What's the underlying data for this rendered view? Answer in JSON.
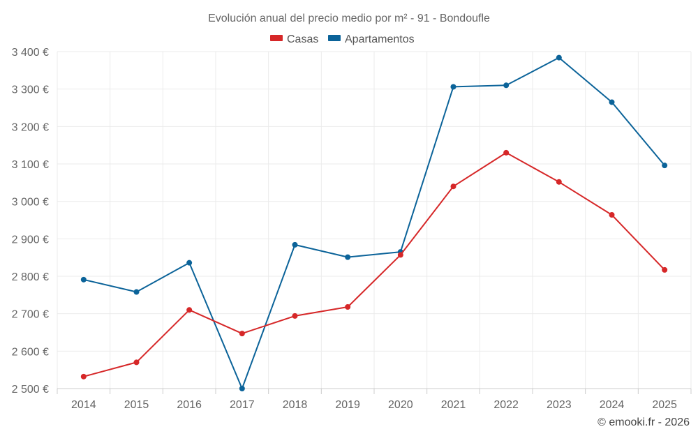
{
  "chart_data": {
    "type": "line",
    "title": "Evolución anual del precio medio por m² - 91 - Bondoufle",
    "categories": [
      "2014",
      "2015",
      "2016",
      "2017",
      "2018",
      "2019",
      "2020",
      "2021",
      "2022",
      "2023",
      "2024",
      "2025"
    ],
    "series": [
      {
        "name": "Casas",
        "color": "#d62728",
        "values": [
          2532,
          2570,
          2710,
          2647,
          2694,
          2718,
          2857,
          3040,
          3130,
          3052,
          2964,
          2817
        ]
      },
      {
        "name": "Apartamentos",
        "color": "#0b6399",
        "values": [
          2791,
          2758,
          2836,
          2500,
          2884,
          2851,
          2865,
          3306,
          3310,
          3384,
          3265,
          3096
        ]
      }
    ],
    "ylim": [
      2500,
      3400
    ],
    "yticks": [
      2500,
      2600,
      2700,
      2800,
      2900,
      3000,
      3100,
      3200,
      3300,
      3400
    ],
    "ytick_labels": [
      "2 500 €",
      "2 600 €",
      "2 700 €",
      "2 800 €",
      "2 900 €",
      "3 000 €",
      "3 100 €",
      "3 200 €",
      "3 300 €",
      "3 400 €"
    ],
    "xlabel": "",
    "ylabel": "",
    "legend_position": "top-center",
    "grid": true,
    "credit": "© emooki.fr - 2026"
  }
}
